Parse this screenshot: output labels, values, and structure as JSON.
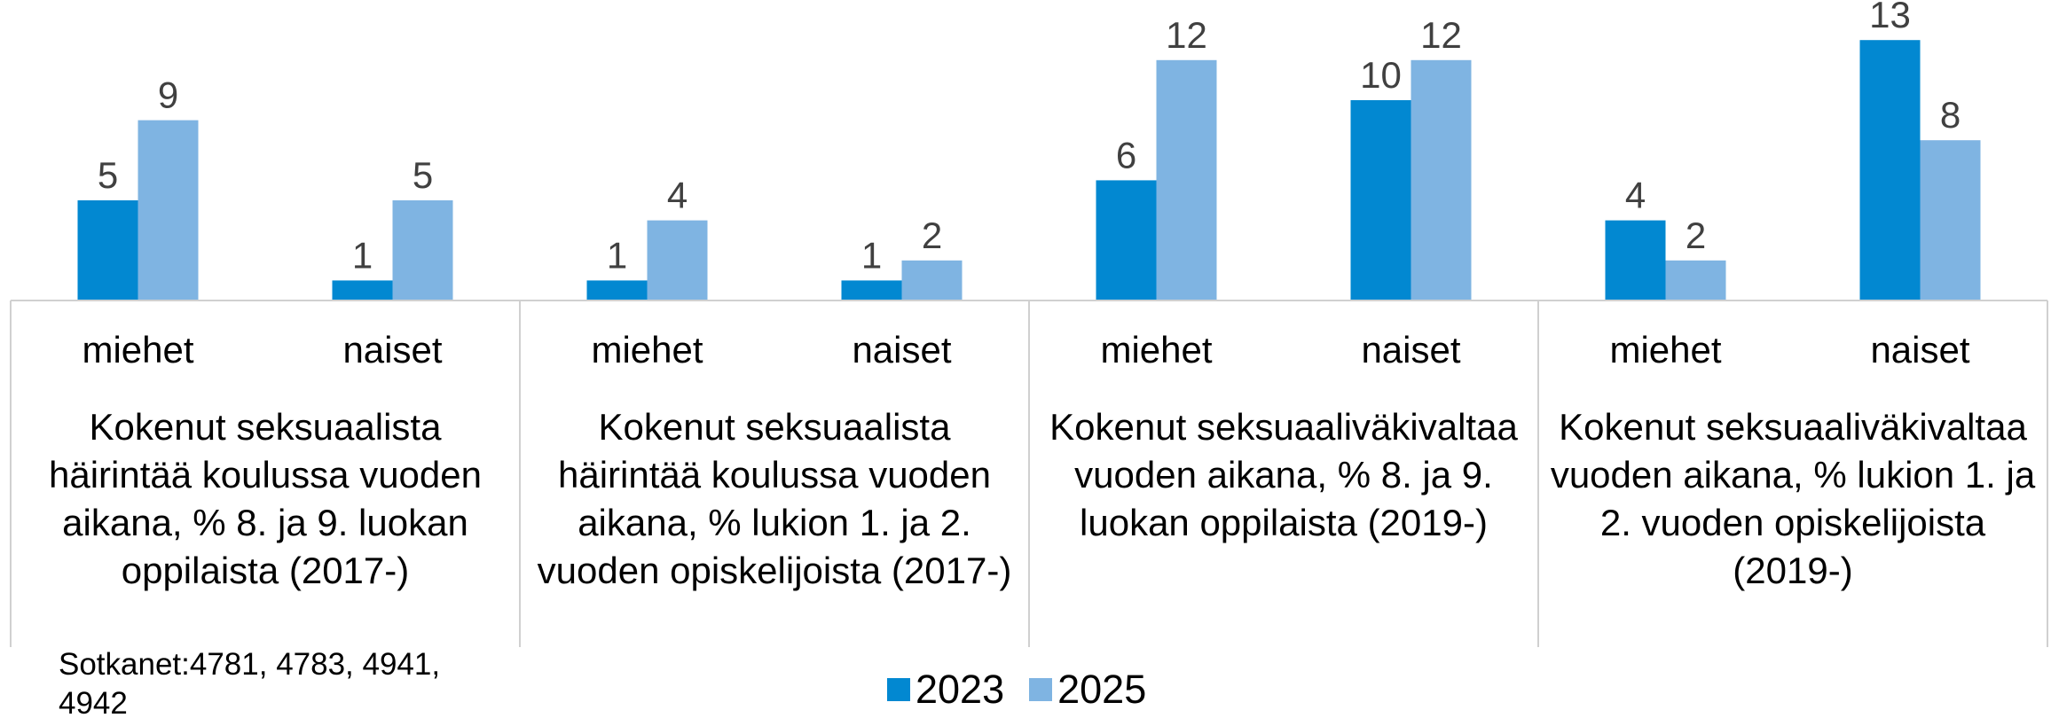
{
  "chart_data": {
    "type": "bar",
    "categories": [
      "miehet",
      "naiset",
      "miehet",
      "naiset",
      "miehet",
      "naiset",
      "miehet",
      "naiset"
    ],
    "groups": [
      "Kokenut seksuaalista häirintää koulussa vuoden aikana, % 8. ja 9. luokan oppilaista (2017-)",
      "Kokenut seksuaalista häirintää koulussa vuoden aikana, % lukion 1. ja 2. vuoden opiskelijoista (2017-)",
      "Kokenut seksuaaliväkivaltaa vuoden aikana, % 8. ja 9. luokan oppilaista (2019-)",
      "Kokenut seksuaaliväkivaltaa vuoden aikana, % lukion 1. ja 2. vuoden opiskelijoista (2019-)"
    ],
    "series": [
      {
        "name": "2023",
        "color": "#0288d1",
        "values": [
          5,
          1,
          1,
          1,
          6,
          10,
          4,
          13
        ]
      },
      {
        "name": "2025",
        "color": "#7fb4e2",
        "values": [
          9,
          5,
          4,
          2,
          12,
          12,
          2,
          8
        ]
      }
    ],
    "ylim": [
      0,
      15
    ],
    "source": "Sotkanet:4781, 4783, 4941, 4942"
  }
}
